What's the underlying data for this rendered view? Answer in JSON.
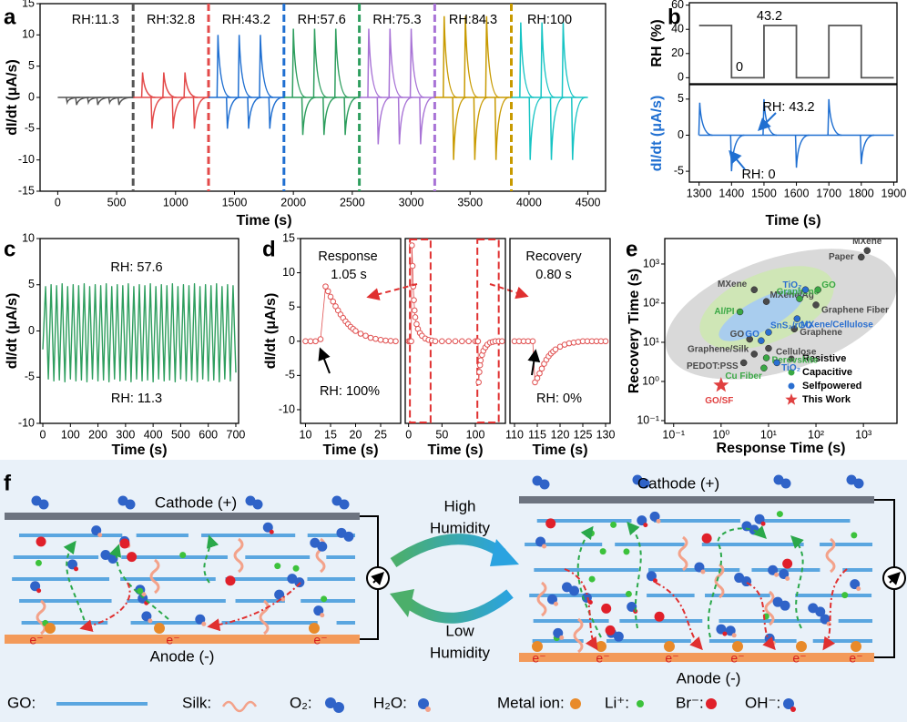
{
  "chart_data": [
    {
      "type": "spike",
      "panel": "a",
      "xlabel": "Time (s)",
      "ylabel": "dI/dt (μA/s)",
      "xlim": [
        -150,
        4650
      ],
      "xticks": [
        0,
        500,
        1000,
        1500,
        2000,
        2500,
        3000,
        3500,
        4000,
        4500
      ],
      "ylim": [
        -15,
        15
      ],
      "yticks": [
        -15,
        -10,
        -5,
        0,
        5,
        10,
        15
      ],
      "baseline": 0,
      "series": [
        {
          "label": "RH:11.3",
          "color": "#555555",
          "range": [
            0,
            640
          ],
          "x": [
            80,
            160,
            260,
            340,
            440,
            520
          ],
          "values": [
            -0.8,
            -1.2,
            -0.8,
            -1.2,
            -0.8,
            -1.2
          ]
        },
        {
          "label": "RH:32.8",
          "color": "#e34a4a",
          "range": [
            640,
            1280
          ],
          "x": [
            720,
            800,
            900,
            980,
            1080,
            1160
          ],
          "values": [
            4,
            -5,
            4,
            -5,
            4,
            -5
          ]
        },
        {
          "label": "RH:43.2",
          "color": "#1f6fd1",
          "range": [
            1280,
            1920
          ],
          "x": [
            1360,
            1440,
            1540,
            1620,
            1720,
            1800
          ],
          "values": [
            10,
            -5,
            10,
            -5,
            10,
            -5
          ]
        },
        {
          "label": "RH:57.6",
          "color": "#2e9e5e",
          "range": [
            1920,
            2560
          ],
          "x": [
            2000,
            2080,
            2180,
            2260,
            2360,
            2440
          ],
          "values": [
            11,
            -6,
            11,
            -6,
            11,
            -6
          ]
        },
        {
          "label": "RH:75.3",
          "color": "#a873d6",
          "range": [
            2560,
            3200
          ],
          "x": [
            2640,
            2720,
            2820,
            2900,
            3000,
            3080
          ],
          "values": [
            11,
            -7.5,
            11,
            -7.5,
            11,
            -7.5
          ]
        },
        {
          "label": "RH:84.3",
          "color": "#c89a00",
          "range": [
            3200,
            3850
          ],
          "x": [
            3280,
            3360,
            3460,
            3540,
            3640,
            3720
          ],
          "values": [
            13,
            -10,
            13,
            -10,
            13,
            -10
          ]
        },
        {
          "label": "RH:100",
          "color": "#17c4c4",
          "range": [
            3850,
            4500
          ],
          "x": [
            3930,
            4010,
            4110,
            4190,
            4290,
            4370
          ],
          "values": [
            12,
            -10,
            12,
            -10,
            12,
            -10
          ]
        }
      ]
    },
    {
      "type": "step",
      "panel": "b",
      "ylabel": "RH (%)",
      "xlim": [
        1270,
        1910
      ],
      "ylim": [
        -5,
        62
      ],
      "yticks": [
        0,
        20,
        40,
        60
      ],
      "color": "#555555",
      "x": [
        1300,
        1400,
        1400,
        1500,
        1500,
        1600,
        1600,
        1700,
        1700,
        1800,
        1800,
        1900
      ],
      "values": [
        43.2,
        43.2,
        0,
        0,
        43.2,
        43.2,
        0,
        0,
        43.2,
        43.2,
        0,
        0
      ],
      "annotations": [
        "43.2",
        "0"
      ]
    },
    {
      "type": "spike",
      "xlabel": "Time (s)",
      "ylabel": "dI/dt (μA/s)",
      "ylabel_color": "#1f6fd1",
      "xlim": [
        1270,
        1910
      ],
      "xticks": [
        1300,
        1400,
        1500,
        1600,
        1700,
        1800,
        1900
      ],
      "ylim": [
        -6.5,
        7
      ],
      "yticks": [
        -5,
        0,
        5
      ],
      "baseline": 0,
      "series": [
        {
          "color": "#1f6fd1",
          "range": [
            1300,
            1900
          ],
          "x": [
            1302,
            1400,
            1500,
            1600,
            1700,
            1800
          ],
          "values": [
            4.5,
            -5,
            5,
            -4.5,
            5,
            -4
          ]
        }
      ],
      "annotations": [
        "RH: 43.2",
        "RH: 0"
      ]
    },
    {
      "type": "line",
      "panel": "c",
      "xlabel": "Time (s)",
      "ylabel": "dI/dt (μA/s)",
      "color": "#2e9e5e",
      "xlim": [
        -10,
        710
      ],
      "xticks": [
        0,
        100,
        200,
        300,
        400,
        500,
        600,
        700
      ],
      "ylim": [
        -10,
        10
      ],
      "yticks": [
        -10,
        -5,
        0,
        5,
        10
      ],
      "x": [
        0,
        10,
        20,
        30,
        40,
        50,
        60,
        70,
        80,
        90,
        100,
        110,
        120,
        130,
        140,
        150,
        160,
        170,
        180,
        190,
        200,
        210,
        220,
        230,
        240,
        250,
        260,
        270,
        280,
        290,
        300,
        310,
        320,
        330,
        340,
        350,
        360,
        370,
        380,
        390,
        400,
        410,
        420,
        430,
        440,
        450,
        460,
        470,
        480,
        490,
        500,
        510,
        520,
        530,
        540,
        550,
        560,
        570,
        580,
        590,
        600,
        610,
        620,
        630,
        640,
        650,
        660,
        670,
        680,
        690,
        700
      ],
      "values": [
        -2,
        4.8,
        -5.2,
        5.0,
        -5.4,
        4.9,
        -5.3,
        5.1,
        -5.5,
        4.8,
        -5.2,
        5.0,
        -5.4,
        4.9,
        -5.3,
        5.1,
        -5.5,
        4.8,
        -5.2,
        5.0,
        -5.4,
        4.9,
        -5.3,
        5.1,
        -5.5,
        4.8,
        -5.2,
        5.0,
        -5.4,
        4.9,
        -5.3,
        5.1,
        -5.5,
        4.8,
        -5.2,
        5.0,
        -5.4,
        4.9,
        -5.3,
        5.1,
        -5.5,
        4.8,
        -5.2,
        5.0,
        -5.4,
        4.9,
        -5.3,
        5.1,
        -5.5,
        4.8,
        -5.2,
        5.0,
        -5.4,
        4.9,
        -5.3,
        5.1,
        -5.5,
        4.8,
        -5.2,
        5.0,
        -5.4,
        4.9,
        -5.3,
        5.1,
        -5.5,
        4.8,
        -5.2,
        5.0,
        -5.4,
        4.9,
        -4.5
      ],
      "annotations": [
        "RH: 57.6",
        "RH: 11.3"
      ]
    },
    {
      "type": "dots",
      "panel": "d",
      "xlabel": "Time (s)",
      "ylabel": "dI/dt (μA/s)",
      "color": "#e05050",
      "xlim": [
        9,
        29
      ],
      "xticks": [
        10,
        15,
        20,
        25
      ],
      "ylim": [
        -12,
        15
      ],
      "yticks": [
        -10,
        -5,
        0,
        5,
        10,
        15
      ],
      "x": [
        10,
        11,
        12,
        13,
        14,
        14.5,
        15,
        15.5,
        16,
        16.5,
        17,
        17.5,
        18,
        18.5,
        19,
        19.5,
        20,
        21,
        22,
        23,
        24,
        25,
        26,
        27,
        28
      ],
      "values": [
        0,
        0,
        0,
        0.3,
        8,
        7.3,
        6.5,
        5.8,
        5.1,
        4.5,
        3.9,
        3.4,
        2.9,
        2.5,
        2.1,
        1.8,
        1.5,
        1.1,
        0.8,
        0.5,
        0.35,
        0.2,
        0.1,
        0.05,
        0
      ],
      "annotations": [
        "Response",
        "1.05 s",
        "RH: 100%"
      ]
    },
    {
      "type": "dots",
      "xlabel": "Time (s)",
      "color": "#e05050",
      "xlim": [
        -5,
        145
      ],
      "xticks": [
        0,
        50,
        100
      ],
      "ylim": [
        -12,
        15
      ],
      "x": [
        0,
        2,
        4,
        5,
        6,
        7,
        8,
        9,
        10,
        12,
        14,
        17,
        20,
        25,
        30,
        35,
        40,
        50,
        60,
        70,
        80,
        90,
        100,
        103,
        104,
        105,
        106,
        107,
        108,
        110,
        112,
        115,
        118,
        122,
        126,
        130,
        135,
        140
      ],
      "values": [
        0,
        0,
        0,
        14,
        11,
        8,
        6,
        4.5,
        3.5,
        2.5,
        1.8,
        1.2,
        0.8,
        0.4,
        0.2,
        0.1,
        0,
        0,
        0,
        0,
        0,
        0,
        0,
        0,
        0,
        -6,
        -4.5,
        -3.5,
        -2.8,
        -2,
        -1.4,
        -0.9,
        -0.5,
        -0.2,
        -0.1,
        0,
        0,
        0
      ],
      "highlights": [
        [
          2,
          33
        ],
        [
          103,
          135
        ]
      ]
    },
    {
      "type": "dots",
      "xlabel": "Time (s)",
      "color": "#e05050",
      "xlim": [
        109,
        131
      ],
      "xticks": [
        110,
        115,
        120,
        125,
        130
      ],
      "ylim": [
        -12,
        15
      ],
      "x": [
        110,
        111,
        112,
        113,
        114,
        114.5,
        115,
        115.5,
        116,
        116.5,
        117,
        117.5,
        118,
        118.5,
        119,
        120,
        121,
        122,
        123,
        124,
        125,
        126,
        127,
        128,
        129,
        130
      ],
      "values": [
        0,
        0,
        0,
        0,
        0,
        -6,
        -5.4,
        -4.7,
        -4,
        -3.3,
        -2.7,
        -2.2,
        -1.8,
        -1.5,
        -1.2,
        -0.8,
        -0.5,
        -0.3,
        -0.2,
        -0.1,
        0,
        0,
        0,
        0,
        0,
        0
      ],
      "annotations": [
        "Recovery",
        "0.80 s",
        "RH: 0%"
      ]
    },
    {
      "type": "scatter",
      "panel": "e",
      "log": true,
      "xlabel": "Response Time (s)",
      "ylabel": "Recovery Time (s)",
      "xlim": [
        0.065,
        5100
      ],
      "ylim": [
        0.085,
        4470
      ],
      "xticks": [
        {
          "value": 0.1,
          "label": "10⁻¹"
        },
        {
          "value": 1,
          "label": "10⁰"
        },
        {
          "value": 10,
          "label": "10¹"
        },
        {
          "value": 100,
          "label": "10²"
        },
        {
          "value": 1000,
          "label": "10³"
        }
      ],
      "yticks": [
        {
          "value": 0.1,
          "label": "10⁻¹"
        },
        {
          "value": 1,
          "label": "10⁰"
        },
        {
          "value": 10,
          "label": "10¹"
        },
        {
          "value": 100,
          "label": "10²"
        },
        {
          "value": 1000,
          "label": "10³"
        }
      ],
      "series": [
        {
          "name": "Resistive",
          "color": "#4a4a4a",
          "labels": [
            "MXene",
            "Paper",
            "MXene",
            "MXene/Ag",
            "Graphene Fiber",
            "Graphene",
            "GO",
            "Cellulose",
            "Graphene/Silk",
            "PEDOT:PSS"
          ],
          "x": [
            1200,
            900,
            5,
            9,
            100,
            35,
            4,
            10,
            5,
            3
          ],
          "values": [
            2200,
            1500,
            220,
            110,
            90,
            22,
            12,
            7,
            5,
            3
          ]
        },
        {
          "name": "Capacitive",
          "color": "#3aa845",
          "labels": [
            "GO",
            "Graphene",
            "Al/PI",
            "Perovskite",
            "Cu Fiber"
          ],
          "x": [
            110,
            45,
            2.5,
            9,
            8
          ],
          "values": [
            220,
            130,
            60,
            4,
            2.2
          ]
        },
        {
          "name": "Selfpowered",
          "color": "#2a6fd0",
          "labels": [
            "TiO₂",
            "MXene/Cellulose",
            "SnS₂/rGO",
            "GO",
            "TiO₂"
          ],
          "x": [
            60,
            40,
            10,
            7,
            15
          ],
          "values": [
            220,
            40,
            18,
            11,
            3
          ]
        },
        {
          "name": "This Work",
          "color": "#e04040",
          "marker": "star",
          "labels": [
            "GO/SF"
          ],
          "x": [
            1
          ],
          "values": [
            0.8
          ]
        }
      ]
    }
  ],
  "diagram": {
    "panel": "f",
    "cathode": [
      "Cathode (+)",
      "Cathode (+)"
    ],
    "anode": [
      "Anode (-)",
      "Anode (-)"
    ],
    "high": [
      "High",
      "Humidity"
    ],
    "low": [
      "Low",
      "Humidity"
    ],
    "electrons": [
      "e⁻",
      "e⁻",
      "e⁻",
      "e⁻",
      "e⁻",
      "e⁻",
      "e⁻",
      "e⁻",
      "e⁻"
    ],
    "legend": [
      "GO:",
      "Silk:",
      "O₂:",
      "H₂O:",
      "Metal ion:",
      "Li⁺:",
      "Br⁻:",
      "OH⁻:"
    ]
  }
}
